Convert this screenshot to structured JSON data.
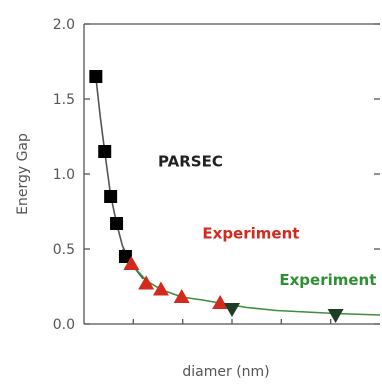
{
  "chart_data": {
    "type": "scatter",
    "xlabel": "diamer (nm)",
    "ylabel": "Energy Gap",
    "ylim": [
      0,
      2.0
    ],
    "xlim": [
      0,
      10
    ],
    "y_ticks": [
      "0.0",
      "0.5",
      "1.0",
      "1.5",
      "2.0"
    ],
    "y_tick_values": [
      0,
      0.5,
      1.0,
      1.5,
      2.0
    ],
    "grid": false,
    "legend": "none",
    "series": [
      {
        "marker": "square",
        "color": "#000000",
        "x": [
          0.4,
          0.7,
          0.9,
          1.1,
          1.4
        ],
        "y": [
          1.65,
          1.15,
          0.85,
          0.67,
          0.45
        ]
      },
      {
        "marker": "triangle-up",
        "color": "#d42a1e",
        "x": [
          1.6,
          2.1,
          2.6,
          3.3,
          4.6
        ],
        "y": [
          0.4,
          0.27,
          0.23,
          0.18,
          0.14
        ]
      },
      {
        "marker": "triangle-down",
        "color": "#1e3d24",
        "x": [
          5.0,
          8.5
        ],
        "y": [
          0.1,
          0.06
        ]
      }
    ],
    "curves": [
      {
        "color": "#555555",
        "x": [
          0.4,
          0.55,
          0.7,
          0.9,
          1.1,
          1.3,
          1.6,
          2.0
        ],
        "y": [
          1.65,
          1.38,
          1.15,
          0.86,
          0.67,
          0.52,
          0.4,
          0.3
        ]
      },
      {
        "color": "#3d8f3d",
        "x": [
          1.3,
          1.6,
          2.1,
          2.6,
          3.3,
          4.0,
          4.6,
          5.5,
          6.5,
          7.5,
          8.5,
          10.0
        ],
        "y": [
          0.5,
          0.4,
          0.29,
          0.23,
          0.18,
          0.16,
          0.14,
          0.11,
          0.09,
          0.08,
          0.07,
          0.06
        ]
      }
    ],
    "annotations": [
      {
        "text": "PARSEC",
        "color": "#222222",
        "at": [
          2.5,
          1.05
        ]
      },
      {
        "text": "Experiment",
        "color": "#d42a1e",
        "at": [
          4.0,
          0.57
        ]
      },
      {
        "text": "Experiment",
        "color": "#2f8f35",
        "at": [
          6.6,
          0.26
        ]
      }
    ]
  }
}
